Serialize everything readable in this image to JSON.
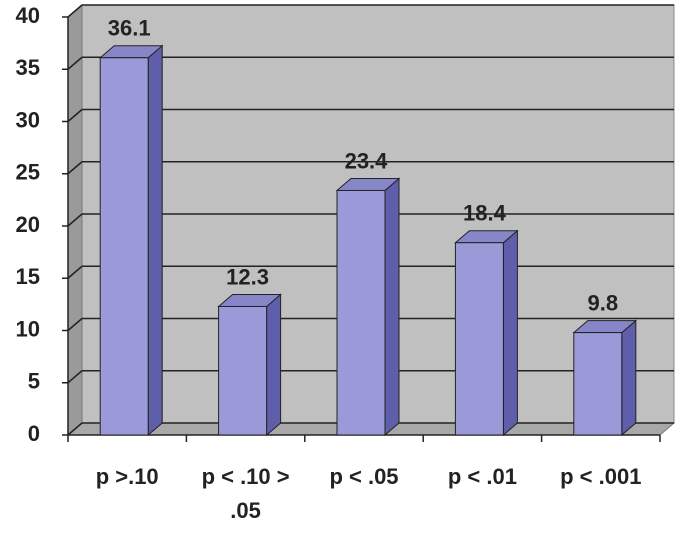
{
  "chart_data": {
    "type": "bar3d",
    "categories": [
      "p >.10",
      "p < .10 > .05",
      "p < .05",
      "p < .01",
      "p < .001"
    ],
    "values": [
      36.1,
      12.3,
      23.4,
      18.4,
      9.8
    ],
    "color": "#9a9ad8",
    "ylim": [
      0,
      40
    ],
    "yticks": [
      0,
      5,
      10,
      15,
      20,
      25,
      30,
      35,
      40
    ],
    "grid": true
  }
}
